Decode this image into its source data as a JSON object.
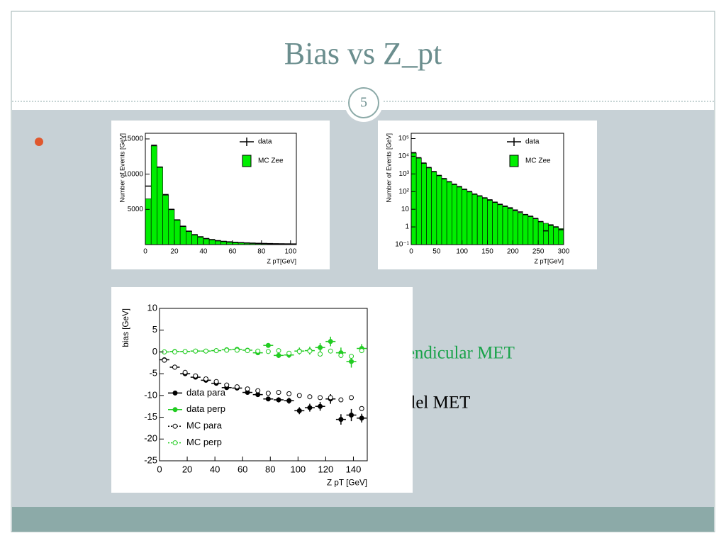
{
  "slide_title": "Bias vs Z_pt",
  "page_number": "5",
  "notes": {
    "perpendicular": "Perpendicular MET",
    "parallel": "Parallel  MET"
  },
  "chart_data": [
    {
      "type": "histogram",
      "ylabel": "Number of Events [GeV]",
      "xlabel": "Z pT[GeV]",
      "bins": [
        0,
        4,
        8,
        12,
        16,
        20,
        24,
        28,
        32,
        36,
        40,
        44,
        48,
        52,
        56,
        60,
        64,
        68,
        72,
        76,
        80,
        84,
        88,
        92,
        96,
        100,
        104
      ],
      "series": [
        {
          "name": "data",
          "color": "#000000",
          "values": [
            8300,
            14100,
            11000,
            7100,
            5000,
            3500,
            2600,
            1900,
            1400,
            1100,
            850,
            700,
            550,
            450,
            380,
            320,
            270,
            230,
            200,
            170,
            150,
            130,
            110,
            100,
            90,
            80
          ]
        },
        {
          "name": "MC Zee",
          "color": "#00ee00",
          "values": [
            6500,
            14000,
            11000,
            7000,
            5000,
            3500,
            2600,
            1900,
            1400,
            1100,
            850,
            700,
            550,
            450,
            380,
            320,
            270,
            230,
            200,
            170,
            150,
            130,
            110,
            100,
            90,
            80
          ]
        }
      ],
      "xlim": [
        0,
        104
      ],
      "xticks": [
        0,
        20,
        40,
        60,
        80,
        100
      ],
      "ylim": [
        0,
        15800
      ],
      "yticks": [
        5000,
        10000,
        15000
      ],
      "log": false,
      "legend": "upper right"
    },
    {
      "type": "histogram",
      "ylabel": "Number of Events [GeV]",
      "xlabel": "Z pT[GeV]",
      "bins": [
        0,
        10,
        20,
        30,
        40,
        50,
        60,
        70,
        80,
        90,
        100,
        110,
        120,
        130,
        140,
        150,
        160,
        170,
        180,
        190,
        200,
        210,
        220,
        230,
        240,
        250,
        260,
        270,
        280,
        290,
        300
      ],
      "series": [
        {
          "name": "data",
          "color": "#000000",
          "values": [
            16000,
            8200,
            4100,
            2300,
            1350,
            820,
            540,
            360,
            260,
            190,
            135,
            100,
            72,
            57,
            44,
            34,
            25,
            19,
            15,
            12,
            9,
            7,
            5,
            4,
            3,
            2,
            0.6,
            1.3,
            1,
            0.7
          ]
        },
        {
          "name": "MC Zee",
          "color": "#00ee00",
          "values": [
            15000,
            8000,
            4000,
            2200,
            1300,
            800,
            520,
            350,
            250,
            180,
            130,
            95,
            70,
            55,
            42,
            32,
            24,
            18,
            14,
            11,
            8,
            6,
            5,
            4,
            3,
            2,
            1.6,
            1.2,
            1,
            0.8
          ]
        }
      ],
      "xlim": [
        0,
        300
      ],
      "xticks": [
        0,
        50,
        100,
        150,
        200,
        250,
        300
      ],
      "ylim": [
        0.1,
        200000
      ],
      "yticks": [
        {
          "value": 0.1,
          "label": "10⁻¹"
        },
        1,
        10,
        {
          "value": 100,
          "label": "10²"
        },
        {
          "value": 1000,
          "label": "10³"
        },
        {
          "value": 10000,
          "label": "10⁴"
        },
        {
          "value": 100000,
          "label": "10⁵"
        }
      ],
      "log": true,
      "legend": "upper right"
    },
    {
      "type": "scatter",
      "ylabel": "bias [GeV]",
      "xlabel": "Z pT [GeV]",
      "x": [
        3.5,
        11,
        18.5,
        26,
        33.5,
        41,
        48.5,
        56,
        63.5,
        71,
        78.5,
        86,
        93.5,
        101,
        108.5,
        116,
        123.5,
        131,
        138.5,
        146
      ],
      "series": [
        {
          "name": "data para",
          "color": "#000000",
          "filled": true,
          "values": [
            -1.8,
            -3.5,
            -5.0,
            -5.8,
            -6.5,
            -7.2,
            -8.2,
            -8.3,
            -9.3,
            -9.8,
            -10.8,
            -11.0,
            -11.2,
            -13.5,
            -12.8,
            -12.5,
            -10.8,
            -15.5,
            -14.5,
            -15.2
          ],
          "errors": [
            0.2,
            0.2,
            0.2,
            0.3,
            0.3,
            0.3,
            0.3,
            0.4,
            0.4,
            0.5,
            0.5,
            0.6,
            0.7,
            0.8,
            0.9,
            1.0,
            1.1,
            1.2,
            1.4,
            1.0
          ]
        },
        {
          "name": "data perp",
          "color": "#22cc22",
          "filled": true,
          "values": [
            0,
            0.1,
            0.1,
            0.2,
            0.2,
            0.3,
            0.5,
            0.6,
            0.4,
            -0.2,
            1.5,
            -0.8,
            -0.7,
            0.2,
            0.3,
            1.0,
            2.4,
            -0.2,
            -2.2,
            0.8
          ],
          "errors": [
            0.2,
            0.2,
            0.2,
            0.3,
            0.3,
            0.3,
            0.3,
            0.4,
            0.4,
            0.5,
            0.5,
            0.6,
            0.7,
            0.8,
            0.9,
            1.0,
            1.1,
            1.2,
            1.4,
            1.0
          ]
        },
        {
          "name": "MC para",
          "color": "#000000",
          "filled": false,
          "values": [
            -1.9,
            -3.5,
            -4.7,
            -5.5,
            -6.2,
            -6.8,
            -7.6,
            -8.0,
            -8.5,
            -8.9,
            -9.5,
            -9.3,
            -9.6,
            -10.0,
            -10.3,
            -10.5,
            -10.5,
            -11.0,
            -10.5,
            -13.0
          ]
        },
        {
          "name": "MC perp",
          "color": "#22cc22",
          "filled": false,
          "values": [
            0,
            0,
            0.1,
            0.2,
            0.2,
            0.3,
            0.4,
            0.4,
            0.3,
            0.2,
            0.1,
            0.3,
            -0.3,
            0.1,
            0.2,
            -0.5,
            0.2,
            -0.8,
            -1.0,
            0.3
          ]
        }
      ],
      "xlim": [
        0,
        150
      ],
      "xticks": [
        0,
        20,
        40,
        60,
        80,
        100,
        120,
        140
      ],
      "ylim": [
        -25,
        10
      ],
      "yticks": [
        -25,
        -20,
        -15,
        -10,
        -5,
        0,
        5,
        10
      ],
      "log": false,
      "legend": "lower left"
    }
  ]
}
